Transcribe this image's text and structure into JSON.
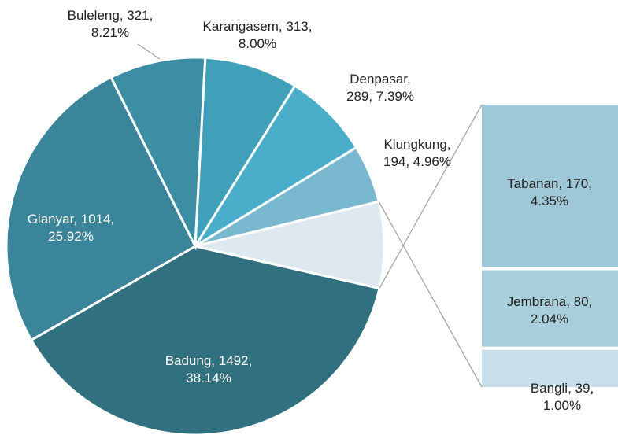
{
  "chart_data": {
    "type": "pie_of_bar",
    "values": [
      1492,
      1014,
      321,
      313,
      289,
      194,
      289
    ],
    "value_labels": [
      "Badung, 1492, 38.14%",
      "Gianyar, 1014, 25.92%",
      "Buleleng, 321, 8.21%",
      "Karangasem, 313, 8.00%",
      "Denpasar, 289, 7.39%",
      "Klungkung, 194, 4.96%",
      null
    ],
    "colors": [
      "#31707f",
      "#3a8599",
      "#3b8ea4",
      "#40a0b9",
      "#4aaecb",
      "#7ab8cf",
      "#dde9ef"
    ],
    "bar": {
      "values": [
        170,
        80,
        39
      ],
      "value_labels": [
        "Tabanan, 170, 4.35%",
        "Jembrana, 80, 2.04%",
        "Bangli, 39, 1.00%"
      ],
      "colors": [
        "#9ec8d8",
        "#a9cfdc",
        "#c8dee8"
      ]
    }
  }
}
